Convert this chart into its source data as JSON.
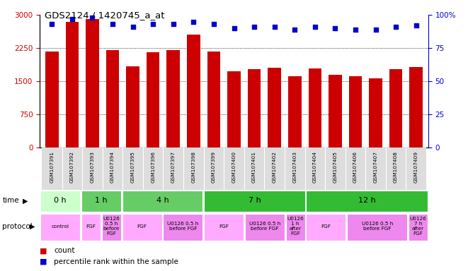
{
  "title": "GDS2124 / 1420745_a_at",
  "samples": [
    "GSM107391",
    "GSM107392",
    "GSM107393",
    "GSM107394",
    "GSM107395",
    "GSM107396",
    "GSM107397",
    "GSM107398",
    "GSM107399",
    "GSM107400",
    "GSM107401",
    "GSM107402",
    "GSM107403",
    "GSM107404",
    "GSM107405",
    "GSM107406",
    "GSM107407",
    "GSM107408",
    "GSM107409"
  ],
  "counts": [
    2170,
    2840,
    2910,
    2210,
    1840,
    2160,
    2200,
    2560,
    2180,
    1730,
    1780,
    1800,
    1610,
    1790,
    1650,
    1620,
    1560,
    1780,
    1820
  ],
  "percentiles": [
    93,
    97,
    98,
    93,
    91,
    93,
    93,
    95,
    93,
    90,
    91,
    91,
    89,
    91,
    90,
    89,
    89,
    91,
    92
  ],
  "bar_color": "#cc0000",
  "dot_color": "#0000cc",
  "ylim_left": [
    0,
    3000
  ],
  "ylim_right": [
    0,
    100
  ],
  "yticks_left": [
    0,
    750,
    1500,
    2250,
    3000
  ],
  "yticks_right": [
    0,
    25,
    50,
    75,
    100
  ],
  "time_groups": [
    {
      "label": "0 h",
      "start": 0,
      "end": 2,
      "color": "#ccffcc"
    },
    {
      "label": "1 h",
      "start": 2,
      "end": 4,
      "color": "#66cc66"
    },
    {
      "label": "4 h",
      "start": 4,
      "end": 8,
      "color": "#66cc66"
    },
    {
      "label": "7 h",
      "start": 8,
      "end": 13,
      "color": "#33bb33"
    },
    {
      "label": "12 h",
      "start": 13,
      "end": 19,
      "color": "#33bb33"
    }
  ],
  "protocol_groups": [
    {
      "label": "control",
      "start": 0,
      "end": 2,
      "color": "#ffaaff"
    },
    {
      "label": "FGF",
      "start": 2,
      "end": 3,
      "color": "#ffaaff"
    },
    {
      "label": "U0126\n0.5 h\nbefore\nFGF",
      "start": 3,
      "end": 4,
      "color": "#ee88ee"
    },
    {
      "label": "FGF",
      "start": 4,
      "end": 6,
      "color": "#ffaaff"
    },
    {
      "label": "U0126 0.5 h\nbefore FGF",
      "start": 6,
      "end": 8,
      "color": "#ee88ee"
    },
    {
      "label": "FGF",
      "start": 8,
      "end": 10,
      "color": "#ffaaff"
    },
    {
      "label": "U0126 0.5 h\nbefore FGF",
      "start": 10,
      "end": 12,
      "color": "#ee88ee"
    },
    {
      "label": "U0126\n1 h\nafter\nFGF",
      "start": 12,
      "end": 13,
      "color": "#ee88ee"
    },
    {
      "label": "FGF",
      "start": 13,
      "end": 15,
      "color": "#ffaaff"
    },
    {
      "label": "U0126 0.5 h\nbefore FGF",
      "start": 15,
      "end": 18,
      "color": "#ee88ee"
    },
    {
      "label": "U0126\n7 h\nafter\nFGF",
      "start": 18,
      "end": 19,
      "color": "#ee88ee"
    }
  ],
  "legend_count_color": "#cc0000",
  "legend_dot_color": "#0000cc",
  "bg_color": "#ffffff",
  "tick_label_color_left": "#cc0000",
  "tick_label_color_right": "#0000cc",
  "sample_bg_color": "#dddddd"
}
